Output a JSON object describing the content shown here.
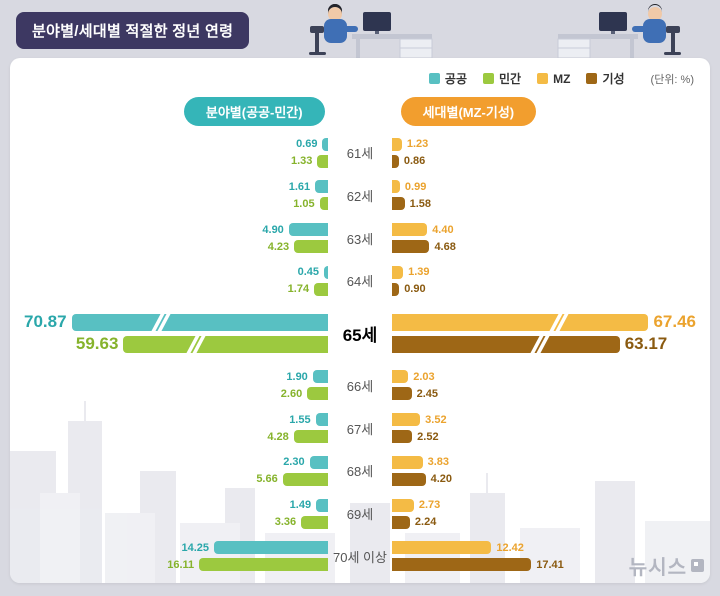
{
  "title": "분야별/세대별 적절한 정년 연령",
  "unit_label": "(단위: %)",
  "left_header": "분야별(공공-민간)",
  "right_header": "세대별(MZ-기성)",
  "watermark": "뉴시스",
  "legend": [
    {
      "key": "public",
      "label": "공공",
      "color": "#58c0c2"
    },
    {
      "key": "private",
      "label": "민간",
      "color": "#9cc93f"
    },
    {
      "key": "mz",
      "label": "MZ",
      "color": "#f4bb45"
    },
    {
      "key": "established",
      "label": "기성",
      "color": "#9e6716"
    }
  ],
  "chart_data": {
    "type": "bar",
    "variant": "butterfly",
    "unit": "%",
    "title": "분야별/세대별 적절한 정년 연령",
    "highlight_category": "65세",
    "categories": [
      "61세",
      "62세",
      "63세",
      "64세",
      "65세",
      "66세",
      "67세",
      "68세",
      "69세",
      "70세 이상"
    ],
    "series": [
      {
        "key": "public",
        "name": "공공",
        "side": "left",
        "color": "#58c0c2",
        "value_color": "#2aa7aa",
        "values": [
          0.69,
          1.61,
          4.9,
          0.45,
          70.87,
          1.9,
          1.55,
          2.3,
          1.49,
          14.25
        ]
      },
      {
        "key": "private",
        "name": "민간",
        "side": "left",
        "color": "#9cc93f",
        "value_color": "#86b32c",
        "values": [
          1.33,
          1.05,
          4.23,
          1.74,
          59.63,
          2.6,
          4.28,
          5.66,
          3.36,
          16.11
        ]
      },
      {
        "key": "mz",
        "name": "MZ",
        "side": "right",
        "color": "#f4bb45",
        "value_color": "#eba32e",
        "values": [
          1.23,
          0.99,
          4.4,
          1.39,
          67.46,
          2.03,
          3.52,
          3.83,
          2.73,
          12.42
        ]
      },
      {
        "key": "established",
        "name": "기성",
        "side": "right",
        "color": "#9e6716",
        "value_color": "#8a5a10",
        "values": [
          0.86,
          1.58,
          4.68,
          0.9,
          63.17,
          2.45,
          2.52,
          4.2,
          2.24,
          17.41
        ]
      }
    ]
  }
}
